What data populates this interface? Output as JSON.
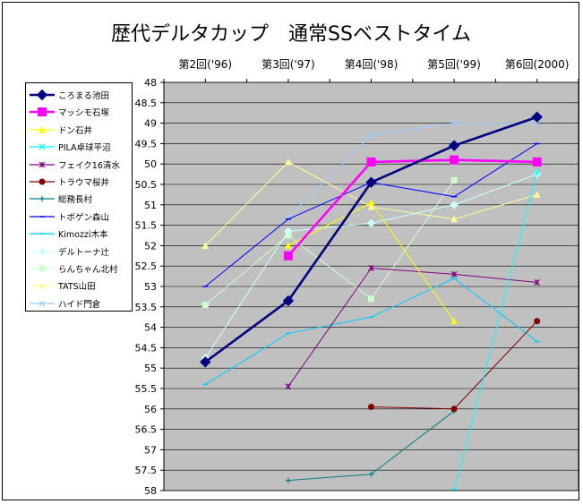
{
  "chart_data": {
    "type": "line",
    "title": "歴代デルタカップ　通常SSベストタイム",
    "categories": [
      "第2回('96)",
      "第3回('97)",
      "第4回('98)",
      "第5回('99)",
      "第6回(2000)"
    ],
    "ylim": [
      48,
      58
    ],
    "y_reversed": true,
    "y_ticks": [
      "48",
      "48.5",
      "49",
      "49.5",
      "50",
      "50.5",
      "51",
      "51.5",
      "52",
      "52.5",
      "53",
      "53.5",
      "54",
      "54.5",
      "55",
      "55.5",
      "56",
      "56.5",
      "57",
      "57.5",
      "58"
    ],
    "grid": true,
    "legend_position": "left",
    "series": [
      {
        "name": "ころまる池田",
        "color": "#000080",
        "marker": "diamond",
        "values": [
          54.85,
          53.35,
          50.45,
          49.55,
          48.85
        ]
      },
      {
        "name": "マッシモ石塚",
        "color": "#ff00ff",
        "marker": "square",
        "values": [
          null,
          52.25,
          49.95,
          49.9,
          49.95
        ]
      },
      {
        "name": "ドン石井",
        "color": "#ffff00",
        "marker": "triangle",
        "values": [
          null,
          52.0,
          50.95,
          53.85,
          null
        ]
      },
      {
        "name": "PILA卓球平沼",
        "color": "#00ffff",
        "marker": "x",
        "values": [
          null,
          null,
          null,
          58.0,
          50.2
        ]
      },
      {
        "name": "フェイク16清水",
        "color": "#800080",
        "marker": "star",
        "values": [
          null,
          55.45,
          52.55,
          52.7,
          52.9
        ]
      },
      {
        "name": "トラウマ桜井",
        "color": "#800000",
        "marker": "circle",
        "values": [
          null,
          null,
          55.95,
          56.0,
          53.85
        ]
      },
      {
        "name": "総務長村",
        "color": "#008080",
        "marker": "plus",
        "values": [
          null,
          57.75,
          57.6,
          56.05,
          null
        ]
      },
      {
        "name": "トボゲン森山",
        "color": "#0000ff",
        "marker": "dash",
        "values": [
          53.0,
          51.35,
          50.45,
          50.8,
          49.5
        ]
      },
      {
        "name": "Kimozzi木本",
        "color": "#00ccff",
        "marker": "dash",
        "values": [
          55.4,
          54.15,
          53.75,
          52.8,
          54.35
        ]
      },
      {
        "name": "デルトーナ辻",
        "color": "#ccffff",
        "marker": "diamond",
        "values": [
          54.75,
          51.65,
          51.45,
          51.0,
          50.25
        ]
      },
      {
        "name": "らんちゃん北村",
        "color": "#ccffcc",
        "marker": "square",
        "values": [
          53.45,
          51.75,
          53.3,
          50.4,
          null
        ]
      },
      {
        "name": "TATS山田",
        "color": "#ffff99",
        "marker": "triangle",
        "values": [
          52.0,
          49.95,
          51.05,
          51.35,
          50.75
        ]
      },
      {
        "name": "ハイド門倉",
        "color": "#99ccff",
        "marker": "x",
        "values": [
          null,
          51.3,
          49.3,
          49.0,
          49.0
        ]
      }
    ]
  }
}
